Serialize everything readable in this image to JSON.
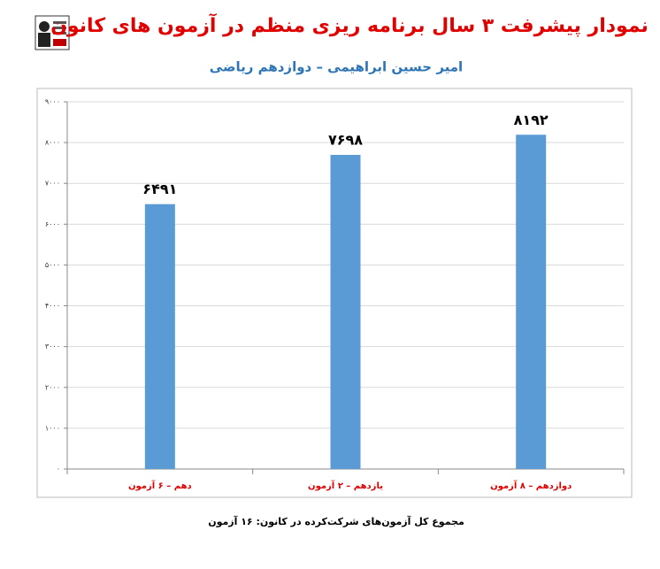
{
  "chart_data": {
    "type": "bar",
    "title": "نمودار پیشرفت ۳ سال برنامه ریزی منظم در آزمون های کانون",
    "subtitle": "امیر حسین ابراهیمی – دوازدهم ریاضی",
    "categories": [
      "دهم – ۶ آزمون",
      "یازدهم – ۲ آزمون",
      "دوازدهم – ۸ آزمون"
    ],
    "values": [
      6491,
      7698,
      8192
    ],
    "value_labels": [
      "۶۴۹۱",
      "۷۶۹۸",
      "۸۱۹۲"
    ],
    "color": "#5b9bd5",
    "ylim": [
      0,
      9000
    ],
    "yticks": [
      {
        "value": 0,
        "label": "۰"
      },
      {
        "value": 1000,
        "label": "۱۰۰۰"
      },
      {
        "value": 2000,
        "label": "۲۰۰۰"
      },
      {
        "value": 3000,
        "label": "۳۰۰۰"
      },
      {
        "value": 4000,
        "label": "۴۰۰۰"
      },
      {
        "value": 5000,
        "label": "۵۰۰۰"
      },
      {
        "value": 6000,
        "label": "۶۰۰۰"
      },
      {
        "value": 7000,
        "label": "۷۰۰۰"
      },
      {
        "value": 8000,
        "label": "۸۰۰۰"
      },
      {
        "value": 9000,
        "label": "۹۰۰۰"
      }
    ],
    "grid": true,
    "footnote": "مجموع کل آزمون‌های شرکت‌کرده در کانون: ۱۶ آزمون"
  }
}
